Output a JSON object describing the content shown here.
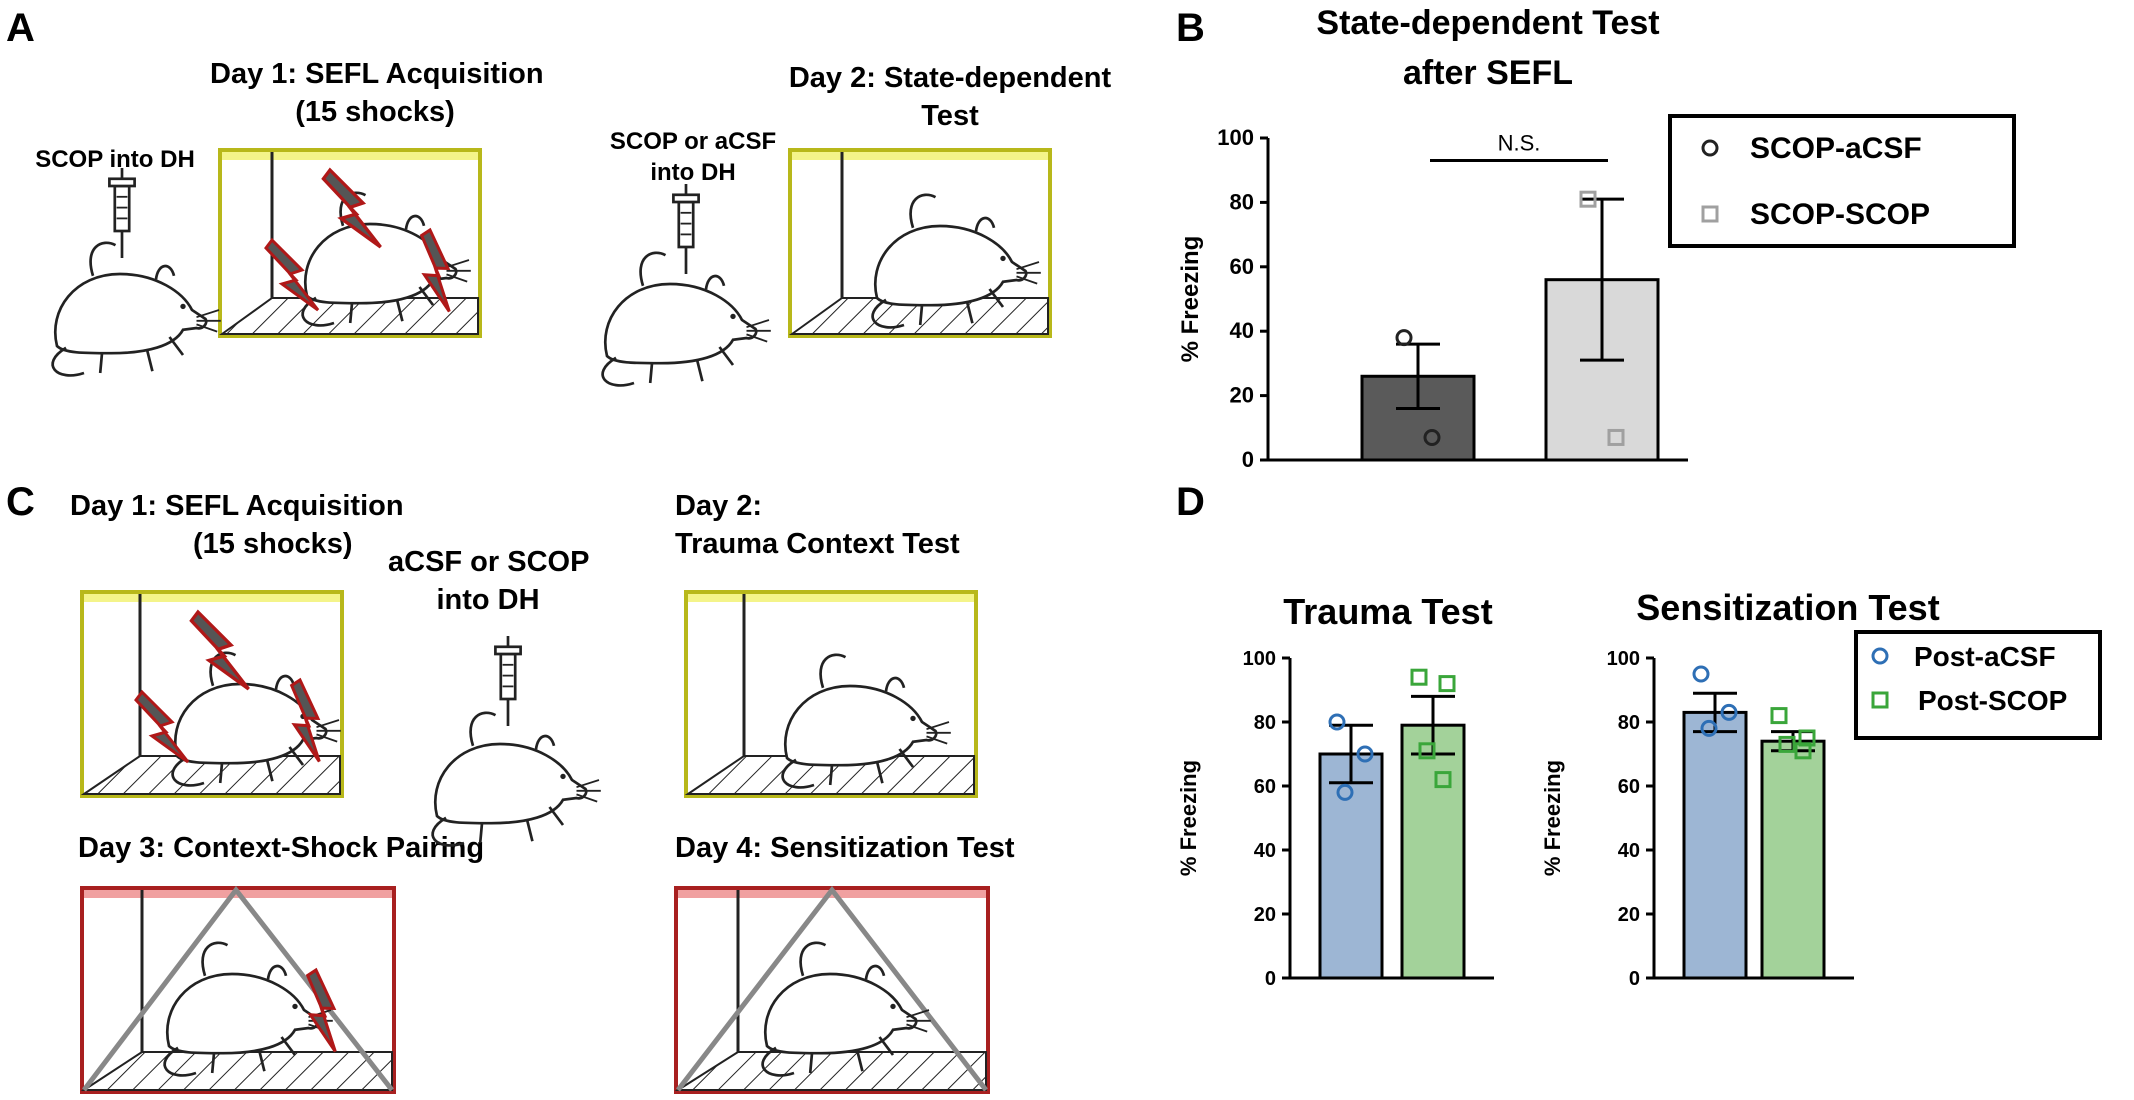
{
  "panels": {
    "a": "A",
    "b": "B",
    "c": "C",
    "d": "D"
  },
  "panel_a": {
    "day1_title": "Day 1: SEFL Acquisition",
    "day1_sub": "(15 shocks)",
    "inj1": "SCOP into DH",
    "inj2_line1": "SCOP or aCSF",
    "inj2_line2": "into DH",
    "day2_title": "Day 2: State-dependent",
    "day2_sub": "Test"
  },
  "panel_c": {
    "day1_title": "Day 1: SEFL Acquisition",
    "day1_sub": "(15 shocks)",
    "inj_line1": "aCSF or SCOP",
    "inj_line2": "into DH",
    "day2_title": "Day 2:",
    "day2_sub": "Trauma Context Test",
    "day3_title": "Day 3: Context-Shock Pairing",
    "day4_title": "Day 4: Sensitization Test"
  },
  "colors": {
    "dark_bar": "#5a5a5a",
    "light_bar": "#d9d9d9",
    "blue_bar": "#9db6d4",
    "green_bar": "#a3d29a",
    "blue_marker": "#2e6fb5",
    "green_marker": "#3aa63a",
    "gray_marker": "#a0a0a0",
    "yellow_box": "#b8b81a",
    "red_box": "#a82020",
    "shock_fill": "#555555",
    "shock_edge": "#b01818"
  },
  "chart_data": [
    {
      "id": "B",
      "type": "bar",
      "title_line1": "State-dependent Test",
      "title_line2": "after SEFL",
      "ylabel": "% Freezing",
      "ylim": [
        0,
        100
      ],
      "yticks": [
        "0",
        "20",
        "40",
        "60",
        "80",
        "100"
      ],
      "annotation": "N.S.",
      "legend": [
        "SCOP-aCSF",
        "SCOP-SCOP"
      ],
      "series": [
        {
          "name": "SCOP-aCSF",
          "mean": 26,
          "sem": 10,
          "points": [
            38,
            7
          ],
          "marker": "circle"
        },
        {
          "name": "SCOP-SCOP",
          "mean": 56,
          "sem": 25,
          "points": [
            81,
            7
          ],
          "marker": "square"
        }
      ]
    },
    {
      "id": "D-trauma",
      "type": "bar",
      "title": "Trauma Test",
      "ylabel": "% Freezing",
      "ylim": [
        0,
        100
      ],
      "yticks": [
        "0",
        "20",
        "40",
        "60",
        "80",
        "100"
      ],
      "series": [
        {
          "name": "Post-aCSF",
          "mean": 70,
          "sem": 9,
          "points": [
            80,
            70,
            58
          ],
          "marker": "circle"
        },
        {
          "name": "Post-SCOP",
          "mean": 79,
          "sem": 9,
          "points": [
            94,
            92,
            71,
            62
          ],
          "marker": "square"
        }
      ]
    },
    {
      "id": "D-sensitization",
      "type": "bar",
      "title": "Sensitization Test",
      "ylabel": "% Freezing",
      "ylim": [
        0,
        100
      ],
      "yticks": [
        "0",
        "20",
        "40",
        "60",
        "80",
        "100"
      ],
      "legend": [
        "Post-aCSF",
        "Post-SCOP"
      ],
      "series": [
        {
          "name": "Post-aCSF",
          "mean": 83,
          "sem": 6,
          "points": [
            95,
            83,
            78
          ],
          "marker": "circle"
        },
        {
          "name": "Post-SCOP",
          "mean": 74,
          "sem": 3,
          "points": [
            82,
            75,
            73,
            71
          ],
          "marker": "square"
        }
      ]
    }
  ]
}
